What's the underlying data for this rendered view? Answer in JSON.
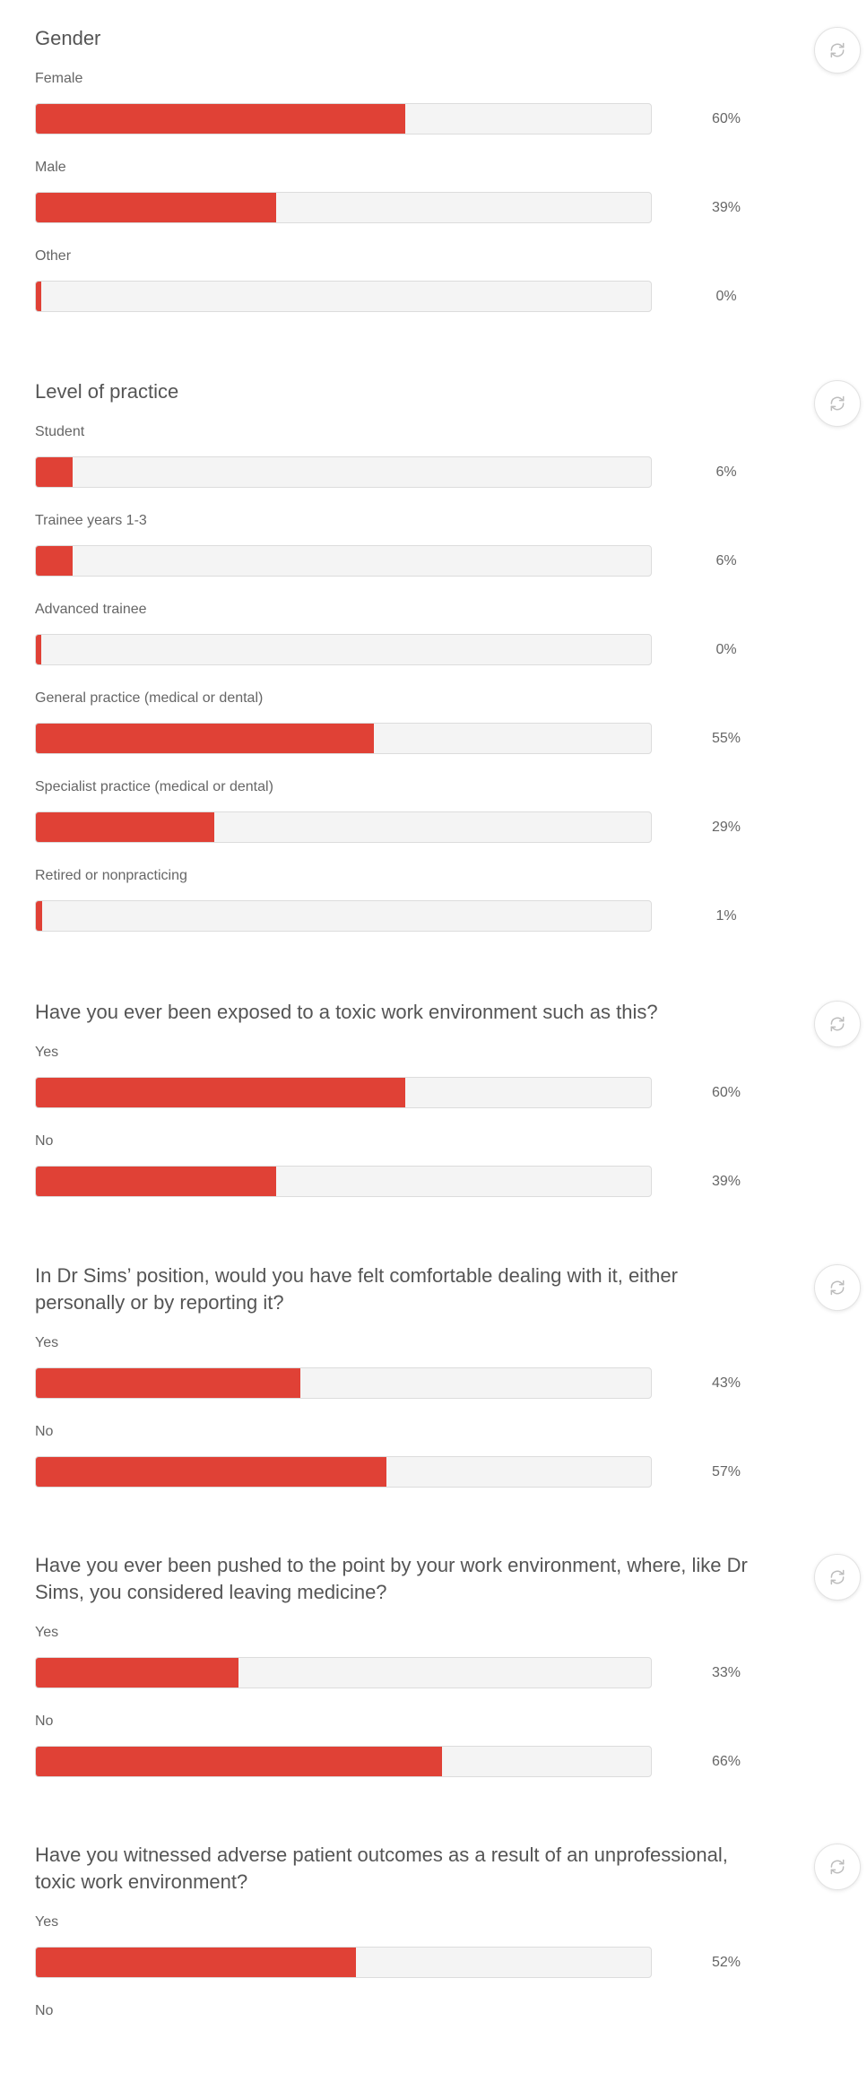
{
  "polls": [
    {
      "title": "Gender",
      "options": [
        {
          "label": "Female",
          "percent_text": "60%",
          "value": 60
        },
        {
          "label": "Male",
          "percent_text": "39%",
          "value": 39
        },
        {
          "label": "Other",
          "percent_text": "0%",
          "value": 0
        }
      ]
    },
    {
      "title": "Level of practice",
      "options": [
        {
          "label": "Student",
          "percent_text": "6%",
          "value": 6
        },
        {
          "label": "Trainee years 1-3",
          "percent_text": "6%",
          "value": 6
        },
        {
          "label": "Advanced trainee",
          "percent_text": "0%",
          "value": 0
        },
        {
          "label": "General practice (medical or dental)",
          "percent_text": "55%",
          "value": 55
        },
        {
          "label": "Specialist practice (medical or dental)",
          "percent_text": "29%",
          "value": 29
        },
        {
          "label": "Retired or nonpracticing",
          "percent_text": "1%",
          "value": 1
        }
      ]
    },
    {
      "title": "Have you ever been exposed to a toxic work environment such as this?",
      "options": [
        {
          "label": "Yes",
          "percent_text": "60%",
          "value": 60
        },
        {
          "label": "No",
          "percent_text": "39%",
          "value": 39
        }
      ]
    },
    {
      "title": "In Dr Sims’ position, would you have felt comfortable dealing with it, either personally or by reporting it?",
      "options": [
        {
          "label": "Yes",
          "percent_text": "43%",
          "value": 43
        },
        {
          "label": "No",
          "percent_text": "57%",
          "value": 57
        }
      ]
    },
    {
      "title": "Have you ever been pushed to the point by your work environment, where, like Dr Sims, you considered leaving medicine?",
      "options": [
        {
          "label": "Yes",
          "percent_text": "33%",
          "value": 33
        },
        {
          "label": "No",
          "percent_text": "66%",
          "value": 66
        }
      ]
    },
    {
      "title": "Have you witnessed adverse patient outcomes as a result of an unprofessional, toxic work environment?",
      "options": [
        {
          "label": "Yes",
          "percent_text": "52%",
          "value": 52
        },
        {
          "label": "No",
          "percent_text": "",
          "value": null
        }
      ]
    }
  ],
  "colors": {
    "accent": "#e04136",
    "track": "#f4f4f4",
    "text": "#555555"
  },
  "icons": {
    "refresh": "refresh-icon"
  }
}
